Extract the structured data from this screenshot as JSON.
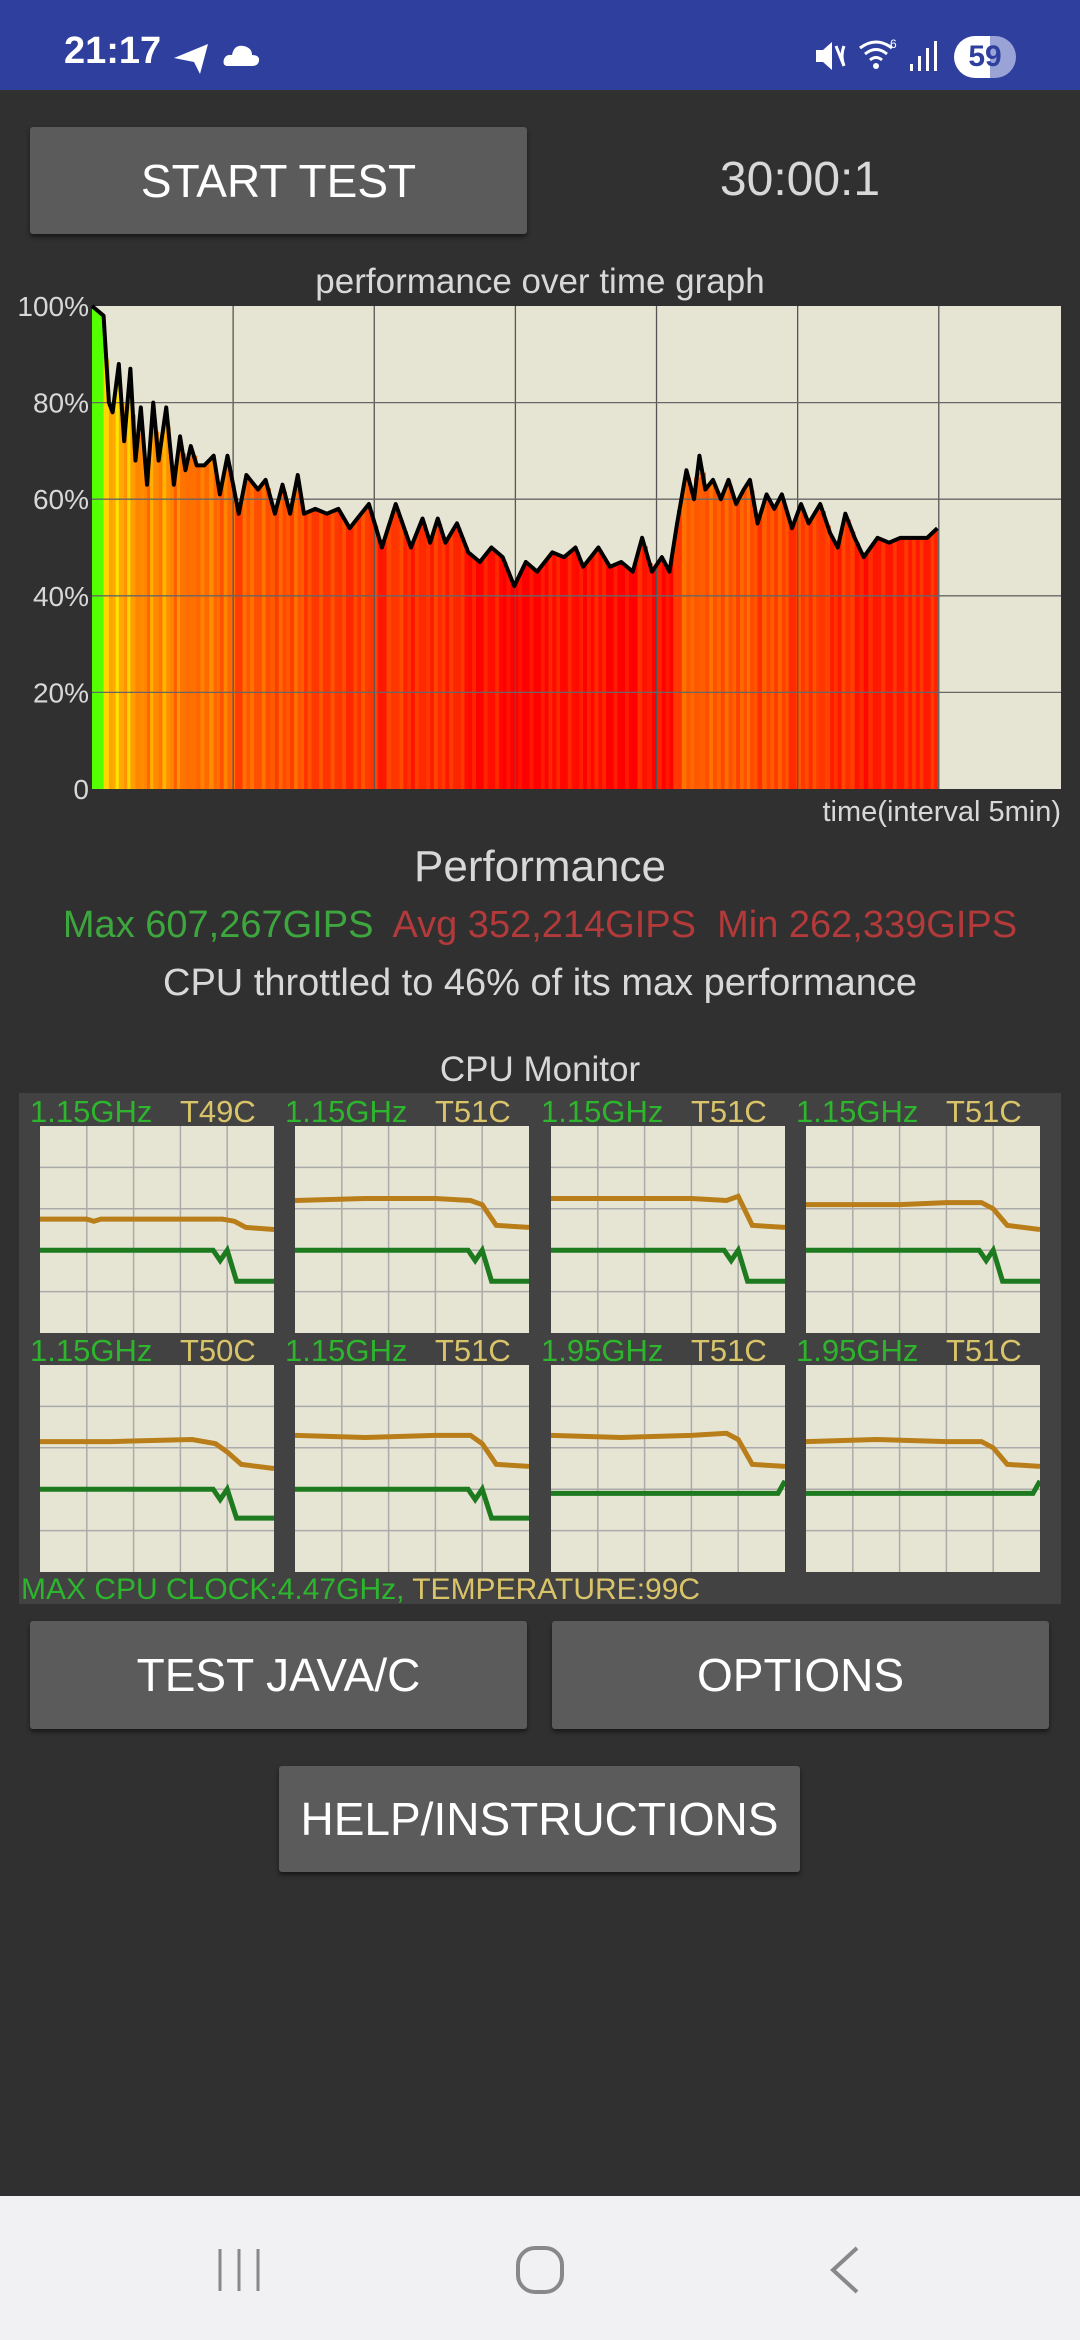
{
  "status_bar": {
    "time": "21:17",
    "battery": "59",
    "icons": [
      "telegram-icon",
      "cloud-icon",
      "mute-icon",
      "wifi-6-icon",
      "signal-icon",
      "battery-icon"
    ],
    "color": "#2f3f9e"
  },
  "controls": {
    "start_test": "START TEST",
    "timer": "30:00:1"
  },
  "graph": {
    "title": "performance over time graph",
    "xlabel": "time(interval 5min)"
  },
  "performance": {
    "heading": "Performance",
    "max": "Max 607,267GIPS",
    "avg": "Avg 352,214GIPS",
    "min": "Min 262,339GIPS",
    "throttle": "CPU throttled to 46% of its max performance",
    "colors": {
      "max": "#3ea63e",
      "avg": "#b33a3a",
      "min": "#b33a3a"
    }
  },
  "chart_data": {
    "type": "area",
    "title": "performance over time graph",
    "xlabel": "time(interval 5min)",
    "ylabel": "",
    "ylim": [
      0,
      100
    ],
    "xlim": [
      0,
      34.33
    ],
    "ytick_labels": [
      "100%",
      "80%",
      "60%",
      "40%",
      "20%",
      "0"
    ],
    "yticks": [
      100,
      80,
      60,
      40,
      20,
      0
    ],
    "xgrid_interval_min": 5,
    "grid": true,
    "x": [
      0,
      0.41,
      0.6,
      0.73,
      0.95,
      1.14,
      1.36,
      1.54,
      1.73,
      1.95,
      2.17,
      2.36,
      2.63,
      2.9,
      3.12,
      3.31,
      3.5,
      3.71,
      3.98,
      4.31,
      4.53,
      4.8,
      5.2,
      5.47,
      5.88,
      6.15,
      6.48,
      6.75,
      7.02,
      7.29,
      7.51,
      7.91,
      8.32,
      8.73,
      9.13,
      9.4,
      9.81,
      10.27,
      10.76,
      11.3,
      11.71,
      11.98,
      12.25,
      12.52,
      12.93,
      13.33,
      13.74,
      14.15,
      14.55,
      14.96,
      15.37,
      15.77,
      16.31,
      16.72,
      17.13,
      17.4,
      17.94,
      18.35,
      18.75,
      19.16,
      19.49,
      19.84,
      20.19,
      20.46,
      20.73,
      21.06,
      21.33,
      21.52,
      21.73,
      22.0,
      22.28,
      22.55,
      22.82,
      23.09,
      23.31,
      23.58,
      23.9,
      24.17,
      24.44,
      24.8,
      25.12,
      25.39,
      25.8,
      26.15,
      26.42,
      26.69,
      27.02,
      27.34,
      27.83,
      28.24,
      28.64,
      29.19,
      29.59,
      29.95
    ],
    "values": [
      100,
      98,
      80,
      78,
      88,
      72,
      87,
      68,
      79,
      63,
      80,
      68,
      79,
      63,
      73,
      66,
      71,
      67,
      67,
      69,
      61,
      69,
      57,
      65,
      62,
      64,
      57,
      63,
      57,
      65,
      57,
      58,
      57,
      58,
      54,
      56,
      59,
      50,
      59,
      50,
      56,
      51,
      56,
      51,
      55,
      49,
      47,
      50,
      48,
      42,
      47,
      45,
      49,
      48,
      50,
      46,
      50,
      46,
      47,
      45,
      52,
      45,
      48,
      45,
      55,
      66,
      60,
      69,
      62,
      64,
      60,
      64,
      59,
      62,
      64,
      55,
      61,
      58,
      61,
      54,
      59,
      55,
      59,
      53,
      50,
      57,
      52,
      48,
      52,
      51,
      52,
      52,
      52,
      54
    ]
  },
  "cpu_monitor": {
    "title": "CPU Monitor",
    "cores": [
      {
        "freq": "1.15GHz",
        "temp": "T49C",
        "load": [
          [
            0,
            55
          ],
          [
            20,
            55
          ],
          [
            23,
            54
          ],
          [
            26,
            55
          ],
          [
            78,
            55
          ],
          [
            83,
            54
          ],
          [
            88,
            51
          ],
          [
            100,
            50
          ]
        ],
        "freq_line": [
          [
            0,
            40
          ],
          [
            74,
            40
          ],
          [
            77,
            35
          ],
          [
            80,
            40
          ],
          [
            84,
            25
          ],
          [
            100,
            25
          ]
        ]
      },
      {
        "freq": "1.15GHz",
        "temp": "T51C",
        "load": [
          [
            0,
            64
          ],
          [
            30,
            65
          ],
          [
            60,
            65
          ],
          [
            75,
            64
          ],
          [
            80,
            62
          ],
          [
            86,
            52
          ],
          [
            100,
            51
          ]
        ],
        "freq_line": [
          [
            0,
            40
          ],
          [
            74,
            40
          ],
          [
            77,
            35
          ],
          [
            80,
            40
          ],
          [
            84,
            25
          ],
          [
            100,
            25
          ]
        ]
      },
      {
        "freq": "1.15GHz",
        "temp": "T51C",
        "load": [
          [
            0,
            65
          ],
          [
            30,
            65
          ],
          [
            60,
            65
          ],
          [
            75,
            64
          ],
          [
            80,
            66
          ],
          [
            86,
            52
          ],
          [
            100,
            51
          ]
        ],
        "freq_line": [
          [
            0,
            40
          ],
          [
            74,
            40
          ],
          [
            77,
            35
          ],
          [
            80,
            40
          ],
          [
            84,
            25
          ],
          [
            100,
            25
          ]
        ]
      },
      {
        "freq": "1.15GHz",
        "temp": "T51C",
        "load": [
          [
            0,
            62
          ],
          [
            40,
            62
          ],
          [
            60,
            63
          ],
          [
            75,
            63
          ],
          [
            80,
            60
          ],
          [
            86,
            52
          ],
          [
            100,
            50
          ]
        ],
        "freq_line": [
          [
            0,
            40
          ],
          [
            74,
            40
          ],
          [
            77,
            35
          ],
          [
            80,
            40
          ],
          [
            84,
            25
          ],
          [
            100,
            25
          ]
        ]
      },
      {
        "freq": "1.15GHz",
        "temp": "T50C",
        "load": [
          [
            0,
            63
          ],
          [
            30,
            63
          ],
          [
            65,
            64
          ],
          [
            75,
            62
          ],
          [
            80,
            58
          ],
          [
            86,
            52
          ],
          [
            100,
            50
          ]
        ],
        "freq_line": [
          [
            0,
            40
          ],
          [
            74,
            40
          ],
          [
            77,
            35
          ],
          [
            80,
            40
          ],
          [
            84,
            26
          ],
          [
            100,
            26
          ]
        ]
      },
      {
        "freq": "1.15GHz",
        "temp": "T51C",
        "load": [
          [
            0,
            66
          ],
          [
            30,
            65
          ],
          [
            60,
            66
          ],
          [
            75,
            66
          ],
          [
            80,
            62
          ],
          [
            86,
            52
          ],
          [
            100,
            51
          ]
        ],
        "freq_line": [
          [
            0,
            40
          ],
          [
            74,
            40
          ],
          [
            77,
            35
          ],
          [
            80,
            40
          ],
          [
            84,
            26
          ],
          [
            100,
            26
          ]
        ]
      },
      {
        "freq": "1.95GHz",
        "temp": "T51C",
        "load": [
          [
            0,
            66
          ],
          [
            30,
            65
          ],
          [
            60,
            66
          ],
          [
            75,
            67
          ],
          [
            80,
            64
          ],
          [
            86,
            52
          ],
          [
            100,
            51
          ]
        ],
        "freq_line": [
          [
            0,
            38
          ],
          [
            97,
            38
          ],
          [
            100,
            44
          ]
        ]
      },
      {
        "freq": "1.95GHz",
        "temp": "T51C",
        "load": [
          [
            0,
            63
          ],
          [
            30,
            64
          ],
          [
            60,
            63
          ],
          [
            75,
            63
          ],
          [
            80,
            60
          ],
          [
            86,
            52
          ],
          [
            100,
            51
          ]
        ],
        "freq_line": [
          [
            0,
            38
          ],
          [
            97,
            38
          ],
          [
            100,
            44
          ]
        ]
      }
    ],
    "max_clock": "MAX CPU CLOCK:4.47GHz,",
    "max_temp": "TEMPERATURE:99C",
    "colors": {
      "freq": "#2db52d",
      "temp": "#d9c46a",
      "load_line": "#b97e19",
      "freq_line": "#1e7a1e"
    }
  },
  "buttons": {
    "test_java_c": "TEST JAVA/C",
    "options": "OPTIONS",
    "help": "HELP/INSTRUCTIONS"
  },
  "nav_bar": {
    "icons": [
      "recent-apps-icon",
      "home-icon",
      "back-icon"
    ]
  }
}
